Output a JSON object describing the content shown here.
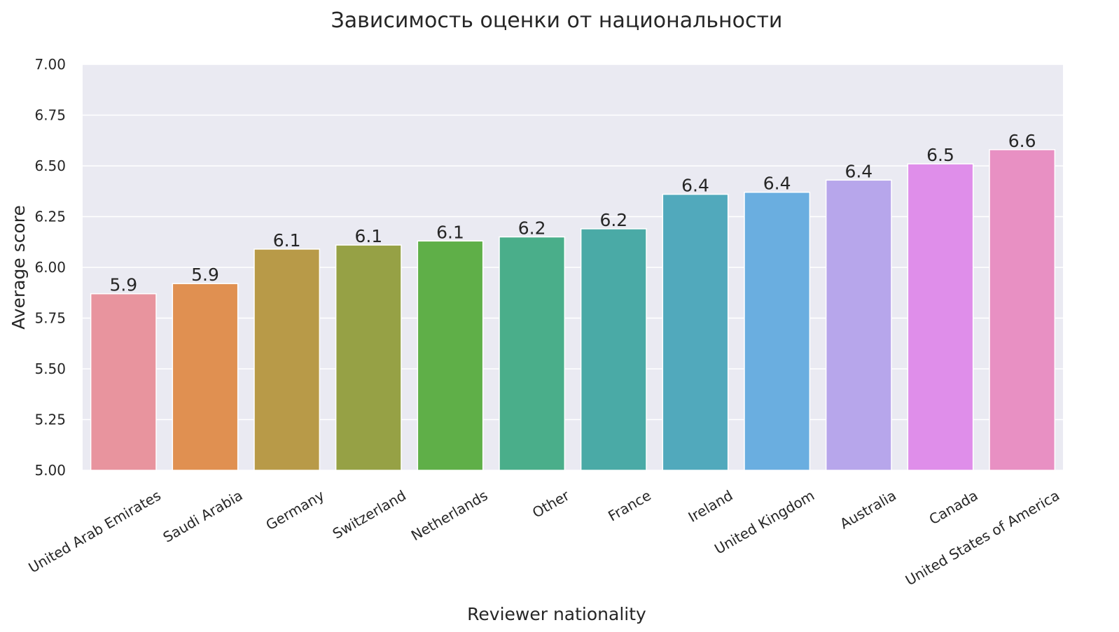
{
  "chart_data": {
    "type": "bar",
    "title": "Зависимость оценки от национальности",
    "xlabel": "Reviewer nationality",
    "ylabel": "Average score",
    "ylim": [
      5.0,
      7.0
    ],
    "yticks": [
      "5.00",
      "5.25",
      "5.50",
      "5.75",
      "6.00",
      "6.25",
      "6.50",
      "6.75",
      "7.00"
    ],
    "grid": true,
    "categories": [
      "United Arab Emirates",
      "Saudi Arabia",
      "Germany",
      "Switzerland",
      "Netherlands",
      "Other",
      "France",
      "Ireland",
      "United Kingdom",
      "Australia",
      "Canada",
      "United States of America"
    ],
    "values": [
      5.87,
      5.92,
      6.09,
      6.11,
      6.13,
      6.15,
      6.19,
      6.36,
      6.37,
      6.43,
      6.51,
      6.58
    ],
    "data_labels": [
      "5.9",
      "5.9",
      "6.1",
      "6.1",
      "6.1",
      "6.2",
      "6.2",
      "6.4",
      "6.4",
      "6.4",
      "6.5",
      "6.6"
    ],
    "colors": [
      "#e8949e",
      "#e09051",
      "#b89a48",
      "#96a145",
      "#5faf48",
      "#4aae8a",
      "#4aaaa6",
      "#51a9bc",
      "#6aaee0",
      "#b7a6eb",
      "#df8eea",
      "#e890c3"
    ]
  }
}
